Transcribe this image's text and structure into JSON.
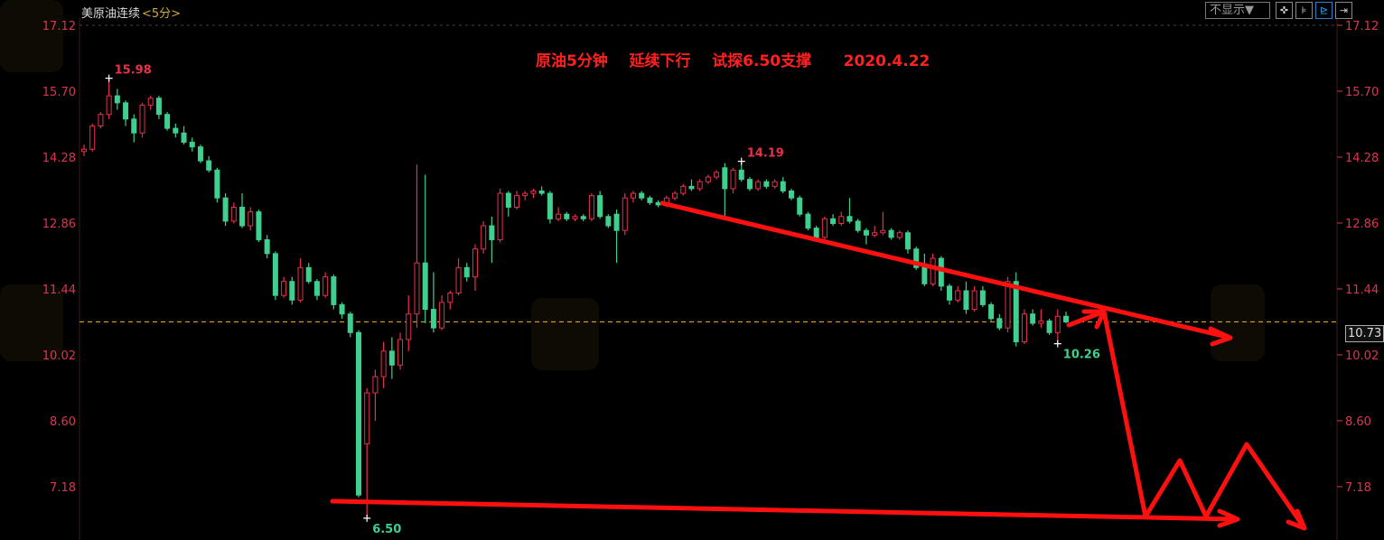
{
  "header": {
    "symbol": "美原油连续",
    "period": "<5分>"
  },
  "toolbar": {
    "display_select": "不显示▼",
    "icons": [
      "crosshair-icon",
      "range-icon",
      "cursor-move-icon",
      "exit-icon"
    ]
  },
  "annotation_title": "原油5分钟    延续下行    试探6.50支撑      2020.4.22",
  "current_price_tag": "10.73",
  "colors": {
    "up": "#e8304a",
    "down": "#3fcf8e",
    "axis_label": "#e0334f",
    "annotation": "#ff1010",
    "price_line": "#e0a030"
  },
  "chart_data": {
    "type": "candlestick",
    "title": "",
    "ylim": [
      6.4,
      17.12
    ],
    "yticks": [
      "17.12",
      "15.70",
      "14.28",
      "12.86",
      "11.44",
      "10.02",
      "8.60",
      "7.18"
    ],
    "current_price": 10.73,
    "ohlc": [
      [
        14.4,
        14.55,
        14.3,
        14.45
      ],
      [
        14.45,
        15.0,
        14.4,
        14.95
      ],
      [
        14.95,
        15.25,
        14.9,
        15.2
      ],
      [
        15.2,
        15.98,
        15.1,
        15.6
      ],
      [
        15.6,
        15.75,
        15.3,
        15.45
      ],
      [
        15.45,
        15.5,
        14.95,
        15.1
      ],
      [
        15.1,
        15.2,
        14.6,
        14.8
      ],
      [
        14.8,
        15.45,
        14.7,
        15.4
      ],
      [
        15.4,
        15.6,
        15.3,
        15.55
      ],
      [
        15.55,
        15.6,
        15.1,
        15.2
      ],
      [
        15.2,
        15.25,
        14.85,
        14.9
      ],
      [
        14.9,
        15.0,
        14.7,
        14.8
      ],
      [
        14.8,
        14.95,
        14.55,
        14.6
      ],
      [
        14.6,
        14.7,
        14.4,
        14.5
      ],
      [
        14.5,
        14.55,
        14.15,
        14.2
      ],
      [
        14.2,
        14.3,
        13.95,
        14.0
      ],
      [
        14.0,
        14.05,
        13.3,
        13.4
      ],
      [
        13.4,
        13.5,
        12.8,
        12.9
      ],
      [
        12.9,
        13.3,
        12.85,
        13.2
      ],
      [
        13.2,
        13.5,
        12.75,
        12.8
      ],
      [
        12.8,
        13.2,
        12.7,
        13.1
      ],
      [
        13.1,
        13.15,
        12.45,
        12.5
      ],
      [
        12.5,
        12.6,
        12.1,
        12.2
      ],
      [
        12.2,
        12.25,
        11.2,
        11.3
      ],
      [
        11.3,
        11.7,
        11.25,
        11.6
      ],
      [
        11.6,
        11.7,
        11.1,
        11.2
      ],
      [
        11.2,
        12.1,
        11.15,
        11.9
      ],
      [
        11.9,
        12.0,
        11.55,
        11.6
      ],
      [
        11.6,
        11.65,
        11.2,
        11.3
      ],
      [
        11.3,
        11.8,
        11.25,
        11.7
      ],
      [
        11.7,
        11.75,
        11.0,
        11.1
      ],
      [
        11.1,
        11.15,
        10.8,
        10.9
      ],
      [
        10.9,
        10.95,
        10.4,
        10.5
      ],
      [
        10.5,
        10.55,
        6.95,
        7.0
      ],
      [
        8.1,
        9.3,
        6.5,
        9.2
      ],
      [
        9.2,
        9.7,
        8.6,
        9.55
      ],
      [
        9.55,
        10.3,
        9.3,
        10.1
      ],
      [
        10.1,
        10.4,
        9.5,
        9.8
      ],
      [
        9.8,
        10.5,
        9.7,
        10.35
      ],
      [
        10.35,
        11.3,
        10.1,
        10.9
      ],
      [
        10.9,
        14.12,
        10.6,
        12.0
      ],
      [
        12.0,
        13.9,
        10.7,
        11.0
      ],
      [
        11.0,
        11.8,
        10.5,
        10.6
      ],
      [
        10.6,
        11.3,
        10.55,
        11.15
      ],
      [
        11.15,
        11.4,
        11.0,
        11.35
      ],
      [
        11.35,
        12.1,
        11.3,
        11.9
      ],
      [
        11.9,
        12.0,
        11.6,
        11.7
      ],
      [
        11.7,
        12.4,
        11.4,
        12.3
      ],
      [
        12.3,
        12.9,
        12.2,
        12.8
      ],
      [
        12.8,
        13.0,
        12.0,
        12.5
      ],
      [
        12.5,
        13.6,
        12.45,
        13.5
      ],
      [
        13.5,
        13.55,
        13.0,
        13.2
      ],
      [
        13.2,
        13.55,
        13.15,
        13.45
      ],
      [
        13.45,
        13.55,
        13.35,
        13.5
      ],
      [
        13.5,
        13.6,
        13.4,
        13.55
      ],
      [
        13.55,
        13.65,
        13.45,
        13.5
      ],
      [
        13.5,
        13.55,
        12.85,
        12.95
      ],
      [
        12.95,
        13.2,
        12.9,
        13.05
      ],
      [
        13.05,
        13.1,
        12.9,
        12.95
      ],
      [
        12.95,
        13.05,
        12.9,
        13.0
      ],
      [
        13.0,
        13.05,
        12.9,
        12.95
      ],
      [
        12.95,
        13.5,
        12.9,
        13.45
      ],
      [
        13.45,
        13.55,
        12.95,
        13.0
      ],
      [
        13.0,
        13.05,
        12.75,
        12.8
      ],
      [
        13.05,
        13.15,
        12.0,
        12.7
      ],
      [
        12.7,
        13.5,
        12.6,
        13.4
      ],
      [
        13.4,
        13.55,
        13.3,
        13.5
      ],
      [
        13.5,
        13.55,
        13.35,
        13.4
      ],
      [
        13.4,
        13.45,
        13.25,
        13.3
      ],
      [
        13.3,
        13.35,
        13.2,
        13.25
      ],
      [
        13.25,
        13.45,
        13.2,
        13.4
      ],
      [
        13.4,
        13.55,
        13.35,
        13.5
      ],
      [
        13.5,
        13.7,
        13.45,
        13.65
      ],
      [
        13.65,
        13.8,
        13.55,
        13.6
      ],
      [
        13.6,
        13.8,
        13.55,
        13.75
      ],
      [
        13.75,
        13.9,
        13.7,
        13.85
      ],
      [
        13.85,
        14.0,
        13.8,
        13.95
      ],
      [
        14.05,
        14.15,
        12.95,
        13.6
      ],
      [
        13.6,
        14.05,
        13.5,
        14.0
      ],
      [
        14.0,
        14.19,
        13.75,
        13.8
      ],
      [
        13.8,
        13.85,
        13.55,
        13.6
      ],
      [
        13.6,
        13.8,
        13.55,
        13.75
      ],
      [
        13.75,
        13.8,
        13.6,
        13.65
      ],
      [
        13.65,
        13.8,
        13.6,
        13.75
      ],
      [
        13.75,
        13.85,
        13.5,
        13.55
      ],
      [
        13.55,
        13.6,
        13.35,
        13.4
      ],
      [
        13.4,
        13.45,
        13.0,
        13.05
      ],
      [
        13.05,
        13.1,
        12.7,
        12.75
      ],
      [
        12.75,
        12.8,
        12.5,
        12.55
      ],
      [
        12.55,
        13.0,
        12.5,
        12.95
      ],
      [
        12.95,
        13.05,
        12.8,
        12.85
      ],
      [
        12.85,
        13.1,
        12.8,
        13.0
      ],
      [
        13.0,
        13.4,
        12.85,
        12.9
      ],
      [
        12.9,
        12.95,
        12.65,
        12.7
      ],
      [
        12.7,
        12.75,
        12.4,
        12.6
      ],
      [
        12.6,
        12.8,
        12.55,
        12.65
      ],
      [
        12.65,
        13.1,
        12.6,
        12.7
      ],
      [
        12.7,
        12.75,
        12.5,
        12.55
      ],
      [
        12.55,
        12.7,
        12.5,
        12.65
      ],
      [
        12.65,
        12.7,
        12.2,
        12.3
      ],
      [
        12.3,
        12.35,
        11.85,
        11.9
      ],
      [
        11.9,
        12.2,
        11.5,
        11.55
      ],
      [
        11.55,
        12.2,
        11.5,
        12.1
      ],
      [
        12.1,
        12.15,
        11.4,
        11.5
      ],
      [
        11.5,
        11.55,
        11.1,
        11.2
      ],
      [
        11.2,
        11.5,
        11.15,
        11.4
      ],
      [
        11.4,
        11.6,
        10.9,
        11.0
      ],
      [
        11.0,
        11.5,
        10.95,
        11.4
      ],
      [
        11.4,
        11.5,
        11.05,
        11.1
      ],
      [
        11.1,
        11.15,
        10.75,
        10.8
      ],
      [
        10.8,
        10.9,
        10.55,
        10.6
      ],
      [
        10.6,
        11.7,
        10.5,
        11.6
      ],
      [
        11.6,
        11.8,
        10.2,
        10.3
      ],
      [
        10.3,
        11.0,
        10.25,
        10.9
      ],
      [
        10.9,
        11.0,
        10.65,
        10.7
      ],
      [
        10.7,
        11.0,
        10.6,
        10.75
      ],
      [
        10.75,
        10.8,
        10.45,
        10.5
      ],
      [
        10.5,
        11.0,
        10.26,
        10.85
      ],
      [
        10.85,
        10.95,
        10.7,
        10.73
      ]
    ],
    "extreme_labels": [
      {
        "text": "15.98",
        "candle": 3,
        "kind": "high",
        "color": "#e8304a"
      },
      {
        "text": "6.50",
        "candle": 34,
        "kind": "low",
        "color": "#3fcf8e"
      },
      {
        "text": "14.19",
        "candle": 79,
        "kind": "high",
        "color": "#e8304a"
      },
      {
        "text": "10.26",
        "candle": 117,
        "kind": "low",
        "color": "#3fcf8e"
      }
    ]
  }
}
